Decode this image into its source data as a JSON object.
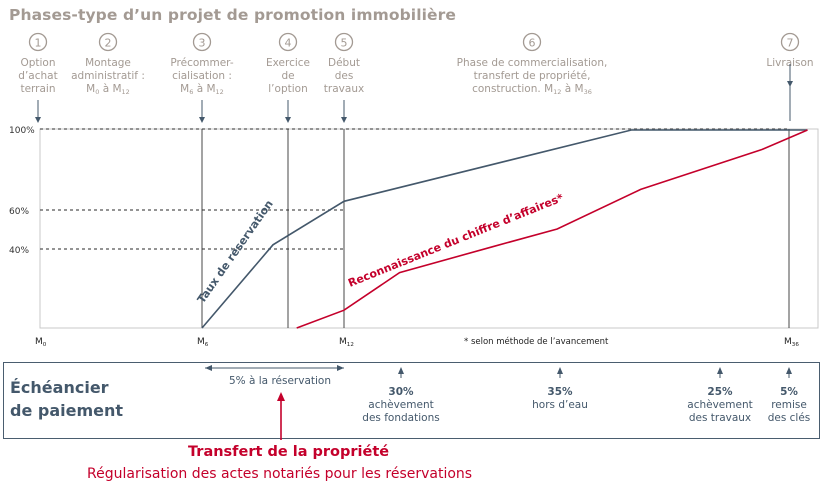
{
  "title": "Phases-type d’un projet de promotion immobilière",
  "phases": [
    {
      "num": "1",
      "lines": [
        "Option",
        "d’achat",
        "terrain"
      ]
    },
    {
      "num": "2",
      "lines": [
        "Montage",
        "administratif :",
        "M0 à M12"
      ]
    },
    {
      "num": "3",
      "lines": [
        "Précommer-",
        "cialisation :",
        "M6 à M12"
      ]
    },
    {
      "num": "4",
      "lines": [
        "Exercice",
        "de",
        "l’option"
      ]
    },
    {
      "num": "5",
      "lines": [
        "Début",
        "des",
        "travaux"
      ]
    },
    {
      "num": "6",
      "lines": [
        "Phase de commercialisation,",
        "transfert de propriété,",
        "construction. M12 à M36"
      ]
    },
    {
      "num": "7",
      "lines": [
        "Livraison"
      ]
    }
  ],
  "chart_data": {
    "type": "line",
    "x_ticks": [
      "M0",
      "M6",
      "M12",
      "M36"
    ],
    "y_ticks": [
      "100%",
      "60%",
      "40%"
    ],
    "series": [
      {
        "name": "Taux de réservation",
        "color": "#44586b",
        "points": [
          [
            6,
            0
          ],
          [
            9,
            42
          ],
          [
            12,
            64
          ],
          [
            27.5,
            100
          ],
          [
            36,
            100
          ],
          [
            37,
            100
          ]
        ]
      },
      {
        "name": "Reconnaissance du chiffre d’affaires*",
        "color": "#c4002b",
        "points": [
          [
            10,
            0
          ],
          [
            12,
            9
          ],
          [
            15,
            28
          ],
          [
            20,
            41
          ],
          [
            23.5,
            50
          ],
          [
            28,
            70
          ],
          [
            34.5,
            90
          ],
          [
            37,
            100
          ]
        ]
      }
    ],
    "footnote": "* selon méthode de l’avancement"
  },
  "schedule": {
    "label_line1": "Échéancier",
    "label_line2": "de paiement",
    "reservation": "5% à la réservation",
    "items": [
      {
        "pct": "30%",
        "l1": "achèvement",
        "l2": "des fondations"
      },
      {
        "pct": "35%",
        "l1": "hors d’eau",
        "l2": ""
      },
      {
        "pct": "25%",
        "l1": "achèvement",
        "l2": "des travaux"
      },
      {
        "pct": "5%",
        "l1": "remise",
        "l2": "des clés"
      }
    ]
  },
  "transfer": {
    "title": "Transfert de la propriété",
    "subtitle": "Régularisation des actes notariés pour les réservations"
  },
  "colors": {
    "gray": "#a39a93",
    "blue": "#44586b",
    "red": "#c4002b"
  }
}
